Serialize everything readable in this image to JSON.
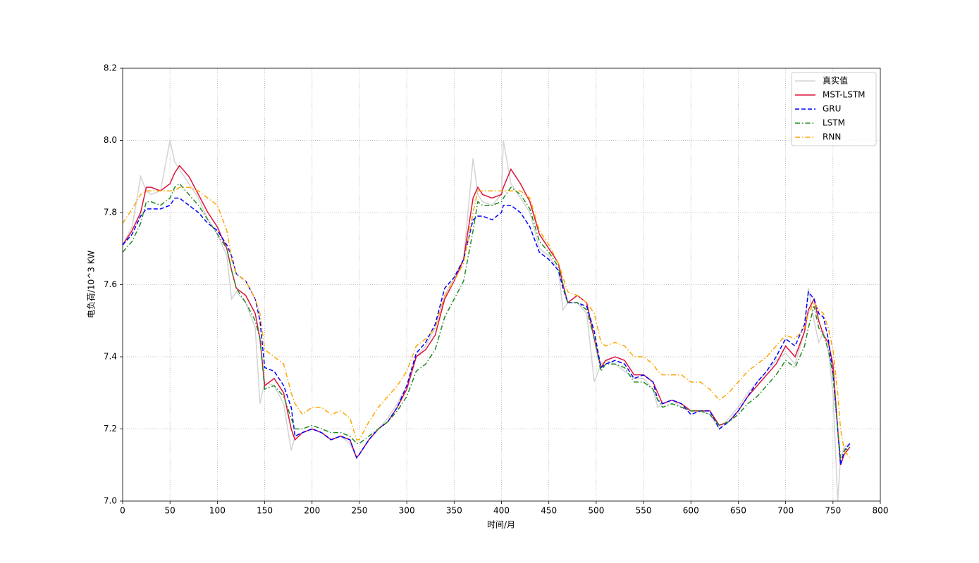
{
  "chart_data": {
    "type": "line",
    "xlabel": "时间/月",
    "ylabel": "电负荷/10^3 KW",
    "xlim": [
      0,
      800
    ],
    "xticks": [
      0,
      50,
      100,
      150,
      200,
      250,
      300,
      350,
      400,
      450,
      500,
      550,
      600,
      650,
      700,
      750,
      800
    ],
    "ylim": [
      7,
      8.2
    ],
    "yticks": [
      {
        "value": 7,
        "label": "7.0"
      },
      7.2,
      7.4,
      7.6,
      7.8,
      {
        "value": 8,
        "label": "8.0"
      },
      8.2
    ],
    "grid": true,
    "legend": "upper right",
    "x": [
      0,
      10,
      19,
      25,
      30,
      40,
      50,
      55,
      60,
      70,
      80,
      90,
      100,
      110,
      115,
      120,
      130,
      140,
      145,
      150,
      160,
      170,
      178,
      182,
      190,
      200,
      210,
      220,
      230,
      240,
      247,
      250,
      260,
      270,
      280,
      290,
      300,
      310,
      320,
      330,
      340,
      350,
      360,
      370,
      375,
      380,
      390,
      400,
      402,
      410,
      420,
      430,
      440,
      450,
      460,
      465,
      470,
      480,
      490,
      498,
      505,
      510,
      520,
      530,
      540,
      550,
      560,
      565,
      570,
      580,
      590,
      600,
      610,
      620,
      630,
      640,
      650,
      660,
      670,
      680,
      690,
      700,
      710,
      720,
      724,
      730,
      735,
      740,
      745,
      750,
      755,
      758,
      762,
      768
    ],
    "series": [
      {
        "name": "真实值",
        "color": "#d3d3d3",
        "linestyle": "solid",
        "values": [
          7.71,
          7.76,
          7.9,
          7.86,
          7.85,
          7.86,
          8.0,
          7.94,
          7.92,
          7.88,
          7.84,
          7.78,
          7.74,
          7.68,
          7.56,
          7.58,
          7.55,
          7.48,
          7.27,
          7.33,
          7.32,
          7.27,
          7.14,
          7.18,
          7.19,
          7.2,
          7.19,
          7.17,
          7.18,
          7.16,
          7.12,
          7.13,
          7.17,
          7.2,
          7.23,
          7.27,
          7.32,
          7.4,
          7.43,
          7.48,
          7.57,
          7.62,
          7.67,
          7.95,
          7.85,
          7.83,
          7.82,
          7.85,
          8.0,
          7.88,
          7.84,
          7.8,
          7.7,
          7.68,
          7.64,
          7.53,
          7.55,
          7.55,
          7.52,
          7.33,
          7.38,
          7.39,
          7.38,
          7.36,
          7.34,
          7.34,
          7.31,
          7.26,
          7.27,
          7.28,
          7.26,
          7.25,
          7.25,
          7.24,
          7.2,
          7.23,
          7.26,
          7.3,
          7.33,
          7.36,
          7.39,
          7.41,
          7.38,
          7.47,
          7.59,
          7.5,
          7.44,
          7.47,
          7.42,
          7.3,
          7.0,
          7.12,
          7.15,
          7.16
        ]
      },
      {
        "name": "MST-LSTM",
        "color": "#dc143c",
        "linestyle": "solid",
        "values": [
          7.71,
          7.75,
          7.8,
          7.87,
          7.87,
          7.86,
          7.88,
          7.91,
          7.93,
          7.9,
          7.85,
          7.8,
          7.76,
          7.7,
          7.64,
          7.59,
          7.57,
          7.52,
          7.45,
          7.32,
          7.34,
          7.3,
          7.2,
          7.17,
          7.19,
          7.2,
          7.19,
          7.17,
          7.18,
          7.17,
          7.12,
          7.13,
          7.17,
          7.2,
          7.22,
          7.26,
          7.31,
          7.4,
          7.42,
          7.46,
          7.56,
          7.61,
          7.67,
          7.84,
          7.87,
          7.85,
          7.84,
          7.85,
          7.87,
          7.92,
          7.88,
          7.83,
          7.74,
          7.7,
          7.66,
          7.6,
          7.55,
          7.57,
          7.55,
          7.45,
          7.37,
          7.39,
          7.4,
          7.39,
          7.35,
          7.35,
          7.33,
          7.3,
          7.27,
          7.28,
          7.27,
          7.25,
          7.25,
          7.25,
          7.21,
          7.22,
          7.25,
          7.29,
          7.32,
          7.35,
          7.38,
          7.43,
          7.4,
          7.47,
          7.53,
          7.56,
          7.5,
          7.46,
          7.44,
          7.38,
          7.2,
          7.1,
          7.13,
          7.15
        ]
      },
      {
        "name": "GRU",
        "color": "#0000ff",
        "linestyle": "dashed",
        "values": [
          7.71,
          7.74,
          7.79,
          7.81,
          7.81,
          7.81,
          7.82,
          7.84,
          7.84,
          7.82,
          7.8,
          7.77,
          7.75,
          7.71,
          7.68,
          7.63,
          7.61,
          7.56,
          7.5,
          7.37,
          7.36,
          7.32,
          7.26,
          7.18,
          7.19,
          7.2,
          7.19,
          7.17,
          7.18,
          7.17,
          7.12,
          7.13,
          7.17,
          7.2,
          7.22,
          7.26,
          7.32,
          7.41,
          7.44,
          7.49,
          7.59,
          7.62,
          7.67,
          7.78,
          7.79,
          7.79,
          7.78,
          7.8,
          7.82,
          7.82,
          7.8,
          7.76,
          7.69,
          7.67,
          7.64,
          7.59,
          7.55,
          7.55,
          7.54,
          7.47,
          7.37,
          7.38,
          7.39,
          7.38,
          7.34,
          7.35,
          7.33,
          7.28,
          7.27,
          7.28,
          7.27,
          7.24,
          7.25,
          7.25,
          7.2,
          7.22,
          7.25,
          7.29,
          7.33,
          7.36,
          7.4,
          7.45,
          7.43,
          7.49,
          7.58,
          7.56,
          7.52,
          7.51,
          7.45,
          7.35,
          7.2,
          7.1,
          7.14,
          7.16
        ]
      },
      {
        "name": "LSTM",
        "color": "#228b22",
        "linestyle": "dashdot",
        "values": [
          7.69,
          7.72,
          7.77,
          7.83,
          7.83,
          7.82,
          7.84,
          7.87,
          7.88,
          7.85,
          7.82,
          7.78,
          7.74,
          7.7,
          7.64,
          7.59,
          7.55,
          7.5,
          7.45,
          7.31,
          7.32,
          7.29,
          7.23,
          7.2,
          7.2,
          7.21,
          7.2,
          7.19,
          7.19,
          7.18,
          7.16,
          7.16,
          7.18,
          7.2,
          7.22,
          7.25,
          7.29,
          7.36,
          7.38,
          7.42,
          7.51,
          7.56,
          7.61,
          7.75,
          7.83,
          7.82,
          7.82,
          7.83,
          7.84,
          7.87,
          7.85,
          7.81,
          7.72,
          7.69,
          7.65,
          7.6,
          7.55,
          7.55,
          7.53,
          7.45,
          7.36,
          7.38,
          7.38,
          7.37,
          7.33,
          7.33,
          7.31,
          7.28,
          7.26,
          7.27,
          7.26,
          7.25,
          7.25,
          7.24,
          7.21,
          7.22,
          7.24,
          7.27,
          7.29,
          7.32,
          7.35,
          7.39,
          7.37,
          7.43,
          7.48,
          7.54,
          7.48,
          7.46,
          7.42,
          7.35,
          7.2,
          7.12,
          7.14,
          7.15
        ]
      },
      {
        "name": "RNN",
        "color": "#ffa500",
        "linestyle": "dashdot",
        "values": [
          7.77,
          7.81,
          7.85,
          7.86,
          7.86,
          7.86,
          7.86,
          7.86,
          7.87,
          7.87,
          7.86,
          7.84,
          7.82,
          7.75,
          7.67,
          7.63,
          7.61,
          7.56,
          7.52,
          7.42,
          7.4,
          7.38,
          7.3,
          7.27,
          7.24,
          7.26,
          7.26,
          7.24,
          7.25,
          7.23,
          7.17,
          7.17,
          7.22,
          7.26,
          7.29,
          7.32,
          7.36,
          7.43,
          7.45,
          7.48,
          7.57,
          7.61,
          7.66,
          7.8,
          7.86,
          7.86,
          7.86,
          7.86,
          7.86,
          7.86,
          7.86,
          7.84,
          7.75,
          7.71,
          7.66,
          7.62,
          7.58,
          7.57,
          7.55,
          7.52,
          7.44,
          7.43,
          7.44,
          7.43,
          7.4,
          7.4,
          7.38,
          7.36,
          7.35,
          7.35,
          7.35,
          7.33,
          7.33,
          7.31,
          7.28,
          7.3,
          7.33,
          7.36,
          7.38,
          7.4,
          7.43,
          7.46,
          7.45,
          7.48,
          7.52,
          7.55,
          7.53,
          7.52,
          7.48,
          7.42,
          7.3,
          7.2,
          7.14,
          7.12
        ]
      }
    ]
  }
}
